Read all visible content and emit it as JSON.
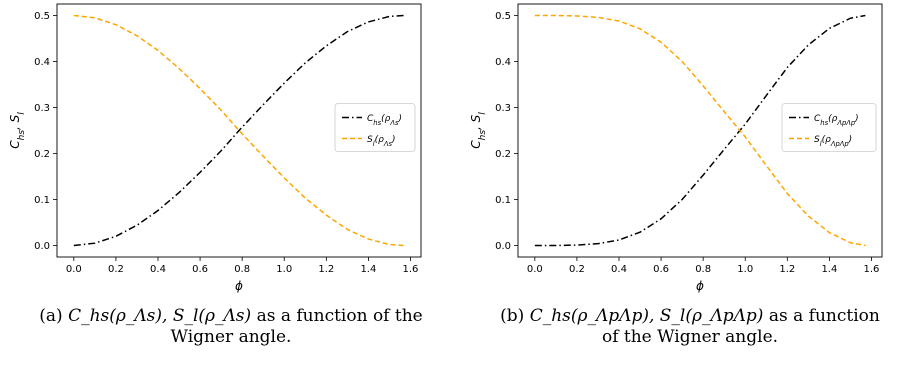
{
  "colors": {
    "chs": "#000000",
    "sl": "#FFA500"
  },
  "chart_data": [
    {
      "type": "line",
      "xlabel": "ϕ",
      "ylabel": "C_hs, S_l",
      "xlim": [
        -0.08,
        1.65
      ],
      "ylim": [
        -0.025,
        0.525
      ],
      "xticks": [
        "0.0",
        "0.2",
        "0.4",
        "0.6",
        "0.8",
        "1.0",
        "1.2",
        "1.4",
        "1.6"
      ],
      "yticks": [
        "0.0",
        "0.1",
        "0.2",
        "0.3",
        "0.4",
        "0.5"
      ],
      "legend_position": "center-right",
      "series": [
        {
          "name": "C_hs(ρ_Λs)",
          "color": "#000000",
          "style": "dashdot",
          "x": [
            0,
            0.1,
            0.2,
            0.3,
            0.4,
            0.5,
            0.6,
            0.7,
            0.785,
            0.9,
            1.0,
            1.1,
            1.2,
            1.3,
            1.4,
            1.5,
            1.571
          ],
          "y": [
            0,
            0.005,
            0.02,
            0.044,
            0.076,
            0.115,
            0.159,
            0.206,
            0.25,
            0.306,
            0.353,
            0.397,
            0.434,
            0.465,
            0.486,
            0.498,
            0.5
          ]
        },
        {
          "name": "S_l(ρ_Λs)",
          "color": "#FFA500",
          "style": "dashed",
          "x": [
            0,
            0.1,
            0.2,
            0.3,
            0.4,
            0.5,
            0.6,
            0.7,
            0.785,
            0.9,
            1.0,
            1.1,
            1.2,
            1.3,
            1.4,
            1.5,
            1.571
          ],
          "y": [
            0.5,
            0.495,
            0.48,
            0.456,
            0.424,
            0.385,
            0.341,
            0.294,
            0.25,
            0.194,
            0.147,
            0.103,
            0.066,
            0.035,
            0.014,
            0.002,
            0
          ]
        }
      ],
      "caption": {
        "tag": "(a)",
        "math": "C_hs(ρ_Λs), S_l(ρ_Λs)",
        "text": "as a function of the Wigner angle."
      }
    },
    {
      "type": "line",
      "xlabel": "ϕ",
      "ylabel": "C_hs, S_l",
      "xlim": [
        -0.08,
        1.65
      ],
      "ylim": [
        -0.025,
        0.525
      ],
      "xticks": [
        "0.0",
        "0.2",
        "0.4",
        "0.6",
        "0.8",
        "1.0",
        "1.2",
        "1.4",
        "1.6"
      ],
      "yticks": [
        "0.0",
        "0.1",
        "0.2",
        "0.3",
        "0.4",
        "0.5"
      ],
      "legend_position": "center-right",
      "series": [
        {
          "name": "C_hs(ρ_ΛpΛp)",
          "color": "#000000",
          "style": "dashdot",
          "x": [
            0,
            0.1,
            0.2,
            0.3,
            0.4,
            0.5,
            0.6,
            0.7,
            0.8,
            0.9,
            1.0,
            1.1,
            1.2,
            1.3,
            1.4,
            1.5,
            1.571
          ],
          "y": [
            0,
            0,
            0.001,
            0.004,
            0.012,
            0.029,
            0.058,
            0.1,
            0.153,
            0.209,
            0.264,
            0.326,
            0.387,
            0.436,
            0.472,
            0.494,
            0.5
          ]
        },
        {
          "name": "S_l(ρ_ΛpΛp)",
          "color": "#FFA500",
          "style": "dashed",
          "x": [
            0,
            0.1,
            0.2,
            0.3,
            0.4,
            0.5,
            0.6,
            0.7,
            0.8,
            0.9,
            1.0,
            1.1,
            1.2,
            1.3,
            1.4,
            1.5,
            1.571
          ],
          "y": [
            0.5,
            0.5,
            0.499,
            0.496,
            0.488,
            0.471,
            0.442,
            0.4,
            0.347,
            0.291,
            0.236,
            0.174,
            0.113,
            0.064,
            0.028,
            0.006,
            0
          ]
        }
      ],
      "caption": {
        "tag": "(b)",
        "math": "C_hs(ρ_ΛpΛp), S_l(ρ_ΛpΛp)",
        "text": "as a function of the Wigner angle."
      }
    }
  ]
}
